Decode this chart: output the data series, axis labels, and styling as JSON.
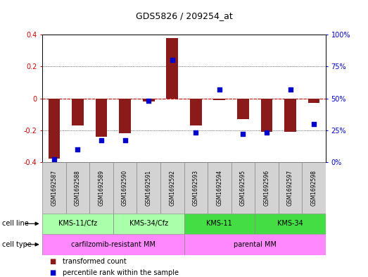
{
  "title": "GDS5826 / 209254_at",
  "samples": [
    "GSM1692587",
    "GSM1692588",
    "GSM1692589",
    "GSM1692590",
    "GSM1692591",
    "GSM1692592",
    "GSM1692593",
    "GSM1692594",
    "GSM1692595",
    "GSM1692596",
    "GSM1692597",
    "GSM1692598"
  ],
  "transformed_count": [
    -0.38,
    -0.17,
    -0.24,
    -0.22,
    -0.02,
    0.38,
    -0.17,
    -0.01,
    -0.13,
    -0.21,
    -0.21,
    -0.03
  ],
  "percentile_rank": [
    2,
    10,
    17,
    17,
    48,
    80,
    23,
    57,
    22,
    23,
    57,
    30
  ],
  "bar_color": "#8B1A1A",
  "dot_color": "#0000CC",
  "bar_width": 0.5,
  "ylim_left": [
    -0.4,
    0.4
  ],
  "ylim_right": [
    0,
    100
  ],
  "yticks_left": [
    -0.4,
    -0.2,
    0.0,
    0.2,
    0.4
  ],
  "ytick_labels_left": [
    "-0.4",
    "-0.2",
    "0",
    "0.2",
    "0.4"
  ],
  "yticks_right": [
    0,
    25,
    50,
    75,
    100
  ],
  "ytick_labels_right": [
    "0%",
    "25%",
    "50%",
    "75%",
    "100%"
  ],
  "zero_line_color": "#CC0000",
  "background_color": "#ffffff",
  "sample_box_color": "#D3D3D3",
  "cl_colors": [
    "#AAFFAA",
    "#AAFFAA",
    "#44DD44",
    "#44DD44"
  ],
  "cl_labels": [
    "KMS-11/Cfz",
    "KMS-34/Cfz",
    "KMS-11",
    "KMS-34"
  ],
  "cl_ranges": [
    [
      0,
      3
    ],
    [
      3,
      6
    ],
    [
      6,
      9
    ],
    [
      9,
      12
    ]
  ],
  "ct_colors": [
    "#FF88FF",
    "#FF88FF"
  ],
  "ct_labels": [
    "carfilzomib-resistant MM",
    "parental MM"
  ],
  "ct_ranges": [
    [
      0,
      6
    ],
    [
      6,
      12
    ]
  ]
}
